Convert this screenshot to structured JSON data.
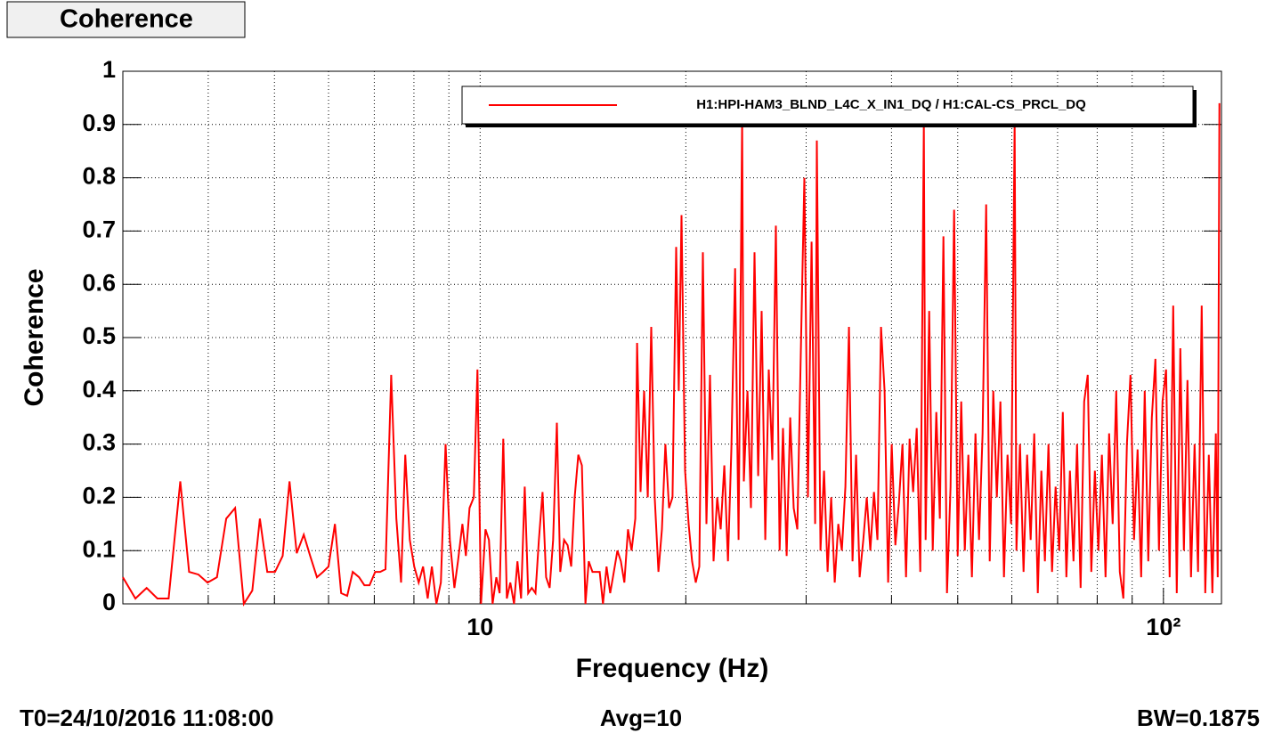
{
  "chart_data": {
    "type": "line",
    "title": "Coherence",
    "xlabel": "Frequency (Hz)",
    "ylabel": "Coherence",
    "xscale": "log",
    "xlim": [
      3,
      121.6
    ],
    "ylim": [
      0,
      1
    ],
    "xticks": [
      10,
      {
        "value": 100,
        "label": "10²"
      }
    ],
    "xminorticks": [
      4,
      5,
      6,
      7,
      8,
      9,
      20,
      30,
      40,
      50,
      60,
      70,
      80,
      90
    ],
    "yticks": [
      0,
      0.1,
      0.2,
      0.3,
      0.4,
      0.5,
      0.6,
      0.7,
      0.8,
      0.9,
      1
    ],
    "grid": true,
    "legend": "top-right",
    "x": [
      3.0,
      3.13,
      3.25,
      3.37,
      3.5,
      3.64,
      3.75,
      3.87,
      3.99,
      4.12,
      4.25,
      4.38,
      4.51,
      4.64,
      4.76,
      4.88,
      5.01,
      5.14,
      5.26,
      5.39,
      5.52,
      5.64,
      5.77,
      5.89,
      6.0,
      6.13,
      6.26,
      6.39,
      6.51,
      6.65,
      6.77,
      6.89,
      7.02,
      7.14,
      7.27,
      7.41,
      7.54,
      7.66,
      7.77,
      7.89,
      8.01,
      8.13,
      8.25,
      8.38,
      8.5,
      8.63,
      8.76,
      8.9,
      9.03,
      9.17,
      9.28,
      9.42,
      9.53,
      9.65,
      9.79,
      9.91,
      10.03,
      10.18,
      10.3,
      10.43,
      10.56,
      10.68,
      10.81,
      10.94,
      11.07,
      11.21,
      11.34,
      11.48,
      11.62,
      11.76,
      11.9,
      12.05,
      12.19,
      12.34,
      12.49,
      12.64,
      12.79,
      12.95,
      13.1,
      13.27,
      13.43,
      13.59,
      13.75,
      13.92,
      14.09,
      14.26,
      14.42,
      14.6,
      14.78,
      14.96,
      15.13,
      15.31,
      15.5,
      15.69,
      15.88,
      16.07,
      16.26,
      16.46,
      16.66,
      16.87,
      16.97,
      17.17,
      17.38,
      17.59,
      17.8,
      18.01,
      18.24,
      18.45,
      18.67,
      18.9,
      19.12,
      19.36,
      19.53,
      19.71,
      19.95,
      20.19,
      20.43,
      20.68,
      20.93,
      21.18,
      21.44,
      21.7,
      21.96,
      22.23,
      22.49,
      22.77,
      23.05,
      23.32,
      23.61,
      23.89,
      24.18,
      24.32,
      24.62,
      24.91,
      25.21,
      25.52,
      25.82,
      26.14,
      26.45,
      26.77,
      27.09,
      27.43,
      27.75,
      28.09,
      28.43,
      28.77,
      29.12,
      29.47,
      29.82,
      30.18,
      30.55,
      30.92,
      31.1,
      31.48,
      31.86,
      32.25,
      32.64,
      33.03,
      33.43,
      33.83,
      34.24,
      34.66,
      35.08,
      35.5,
      35.93,
      36.37,
      36.8,
      37.24,
      37.7,
      38.15,
      38.61,
      39.08,
      39.55,
      40.03,
      40.52,
      41.01,
      41.5,
      42.0,
      42.51,
      43.02,
      43.54,
      44.07,
      44.6,
      44.87,
      45.41,
      45.96,
      46.51,
      47.08,
      47.64,
      48.22,
      48.8,
      49.39,
      49.99,
      50.6,
      51.21,
      51.82,
      52.45,
      53.08,
      53.72,
      54.37,
      55.03,
      55.69,
      56.36,
      57.04,
      57.73,
      58.43,
      59.13,
      59.85,
      60.57,
      60.93,
      61.67,
      62.41,
      63.17,
      63.93,
      64.71,
      65.49,
      66.28,
      67.08,
      67.89,
      68.71,
      69.54,
      70.39,
      71.24,
      72.1,
      72.97,
      73.85,
      74.74,
      75.65,
      76.56,
      77.48,
      78.42,
      79.37,
      80.33,
      81.28,
      82.28,
      83.27,
      84.27,
      85.29,
      86.32,
      87.36,
      88.43,
      89.48,
      90.57,
      91.66,
      92.77,
      93.89,
      95.02,
      96.18,
      97.34,
      98.51,
      99.7,
      100.9,
      102.12,
      103.35,
      104.61,
      105.87,
      107.15,
      108.44,
      109.74,
      111.06,
      112.39,
      113.76,
      115.13,
      116.52,
      117.92,
      119.34,
      120.06,
      120.78
    ],
    "series": [
      {
        "name": "H1:HPI-HAM3_BLND_L4C_X_IN1_DQ / H1:CAL-CS_PRCL_DQ",
        "color": "#ff0000",
        "values": [
          0.05,
          0.01,
          0.03,
          0.01,
          0.01,
          0.23,
          0.06,
          0.055,
          0.04,
          0.05,
          0.16,
          0.18,
          0.0,
          0.025,
          0.16,
          0.06,
          0.06,
          0.09,
          0.23,
          0.095,
          0.13,
          0.09,
          0.05,
          0.06,
          0.07,
          0.15,
          0.02,
          0.015,
          0.06,
          0.05,
          0.035,
          0.035,
          0.06,
          0.06,
          0.065,
          0.43,
          0.16,
          0.04,
          0.28,
          0.12,
          0.07,
          0.04,
          0.07,
          0.01,
          0.07,
          0.0,
          0.04,
          0.3,
          0.12,
          0.03,
          0.08,
          0.15,
          0.09,
          0.18,
          0.2,
          0.44,
          0.0,
          0.14,
          0.12,
          0.0,
          0.05,
          0.02,
          0.31,
          0.01,
          0.04,
          0.0,
          0.08,
          0.01,
          0.22,
          0.02,
          0.03,
          0.02,
          0.12,
          0.21,
          0.05,
          0.03,
          0.12,
          0.34,
          0.06,
          0.12,
          0.11,
          0.07,
          0.2,
          0.28,
          0.26,
          0.0,
          0.08,
          0.06,
          0.06,
          0.06,
          0.0,
          0.07,
          0.02,
          0.06,
          0.1,
          0.08,
          0.04,
          0.14,
          0.1,
          0.16,
          0.49,
          0.21,
          0.4,
          0.2,
          0.52,
          0.2,
          0.06,
          0.14,
          0.3,
          0.18,
          0.2,
          0.67,
          0.4,
          0.73,
          0.25,
          0.15,
          0.08,
          0.04,
          0.07,
          0.66,
          0.15,
          0.43,
          0.08,
          0.2,
          0.14,
          0.26,
          0.08,
          0.29,
          0.63,
          0.12,
          0.91,
          0.23,
          0.4,
          0.18,
          0.66,
          0.24,
          0.55,
          0.12,
          0.44,
          0.27,
          0.71,
          0.1,
          0.33,
          0.09,
          0.35,
          0.18,
          0.14,
          0.48,
          0.8,
          0.2,
          0.68,
          0.15,
          0.87,
          0.1,
          0.25,
          0.06,
          0.2,
          0.04,
          0.15,
          0.1,
          0.22,
          0.52,
          0.08,
          0.28,
          0.05,
          0.12,
          0.2,
          0.1,
          0.21,
          0.12,
          0.52,
          0.4,
          0.04,
          0.3,
          0.11,
          0.19,
          0.3,
          0.05,
          0.31,
          0.21,
          0.33,
          0.06,
          0.9,
          0.12,
          0.55,
          0.1,
          0.36,
          0.16,
          0.69,
          0.02,
          0.22,
          0.74,
          0.09,
          0.38,
          0.1,
          0.28,
          0.05,
          0.32,
          0.12,
          0.32,
          0.75,
          0.08,
          0.4,
          0.2,
          0.38,
          0.05,
          0.28,
          0.15,
          0.91,
          0.1,
          0.3,
          0.06,
          0.28,
          0.12,
          0.32,
          0.02,
          0.25,
          0.08,
          0.3,
          0.06,
          0.22,
          0.1,
          0.36,
          0.05,
          0.25,
          0.08,
          0.3,
          0.03,
          0.38,
          0.43,
          0.06,
          0.25,
          0.1,
          0.28,
          0.05,
          0.32,
          0.15,
          0.4,
          0.06,
          0.01,
          0.3,
          0.43,
          0.12,
          0.29,
          0.05,
          0.4,
          0.08,
          0.35,
          0.46,
          0.1,
          0.38,
          0.44,
          0.05,
          0.56,
          0.02,
          0.48,
          0.1,
          0.42,
          0.05,
          0.3,
          0.06,
          0.56,
          0.02,
          0.28,
          0.02,
          0.32,
          0.05,
          0.94
        ]
      }
    ]
  },
  "footer": {
    "left": "T0=24/10/2016 11:08:00",
    "center": "Avg=10",
    "right": "BW=0.1875"
  }
}
